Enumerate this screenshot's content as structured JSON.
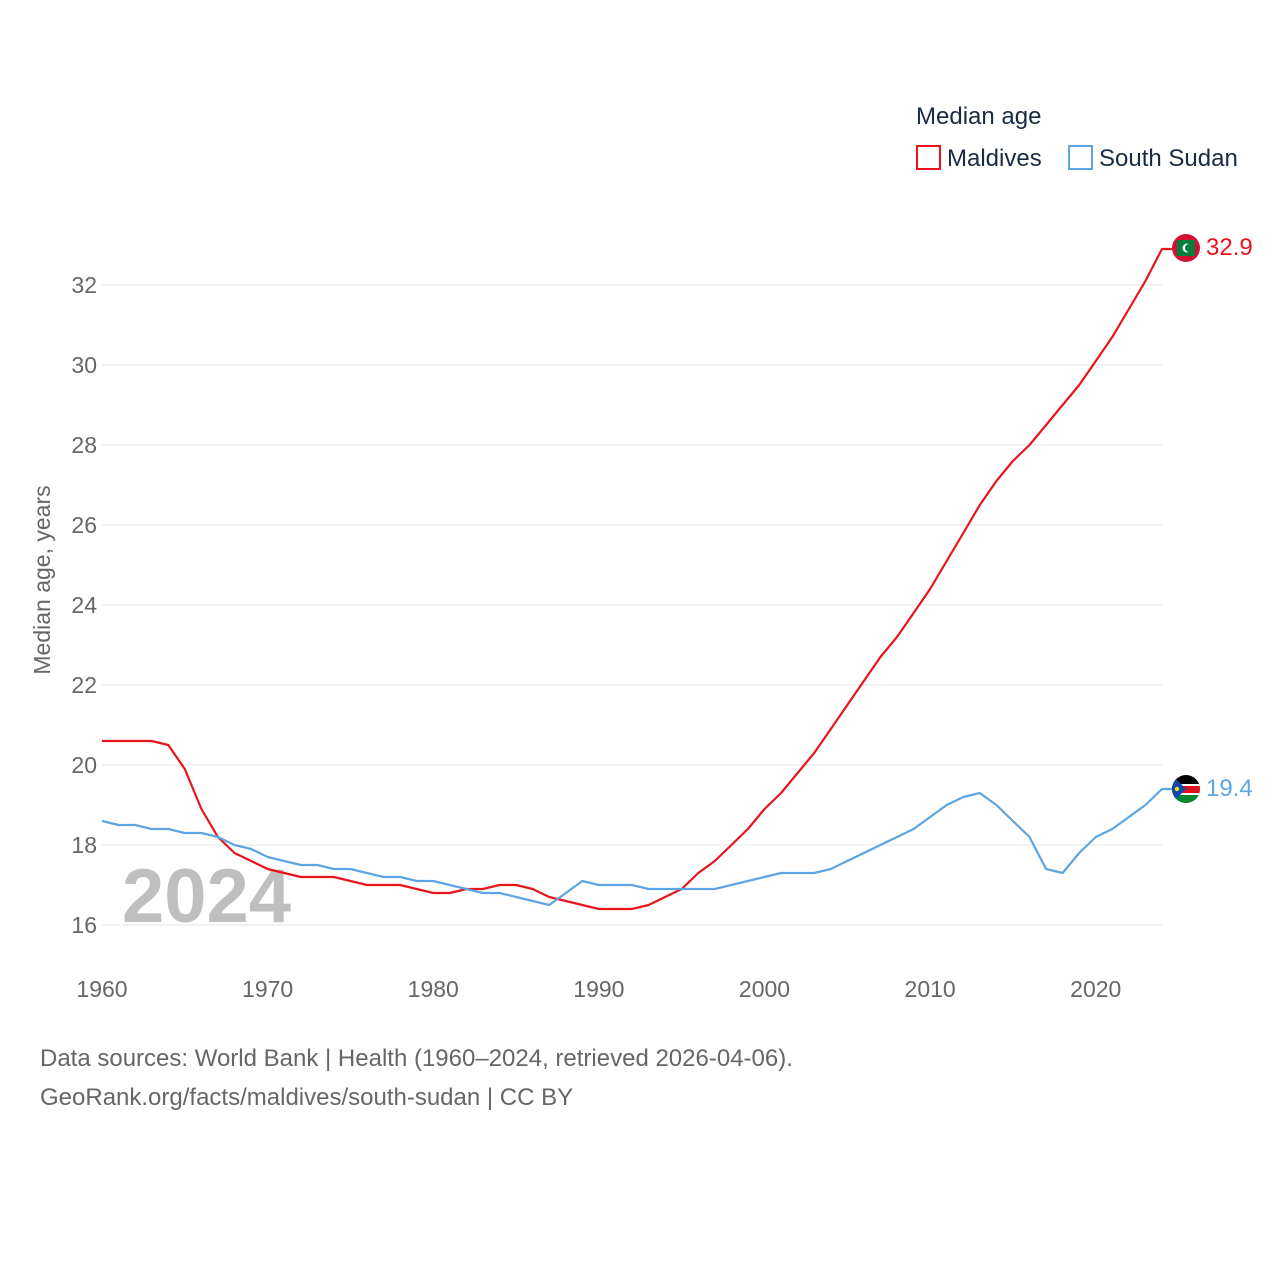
{
  "chart_data": {
    "type": "line",
    "title": "Median age",
    "xlabel": "",
    "ylabel": "Median age, years",
    "xlim": [
      1960,
      2024
    ],
    "ylim": [
      15,
      33.5
    ],
    "x_ticks": [
      1960,
      1970,
      1980,
      1990,
      2000,
      2010,
      2020
    ],
    "y_ticks": [
      16,
      18,
      20,
      22,
      24,
      26,
      28,
      30,
      32
    ],
    "grid": true,
    "legend_position": "top-right",
    "year_label": "2024",
    "x": [
      1960,
      1961,
      1962,
      1963,
      1964,
      1965,
      1966,
      1967,
      1968,
      1969,
      1970,
      1971,
      1972,
      1973,
      1974,
      1975,
      1976,
      1977,
      1978,
      1979,
      1980,
      1981,
      1982,
      1983,
      1984,
      1985,
      1986,
      1987,
      1988,
      1989,
      1990,
      1991,
      1992,
      1993,
      1994,
      1995,
      1996,
      1997,
      1998,
      1999,
      2000,
      2001,
      2002,
      2003,
      2004,
      2005,
      2006,
      2007,
      2008,
      2009,
      2010,
      2011,
      2012,
      2013,
      2014,
      2015,
      2016,
      2017,
      2018,
      2019,
      2020,
      2021,
      2022,
      2023,
      2024
    ],
    "series": [
      {
        "name": "Maldives",
        "color": "#e8141c",
        "end_label": "32.9",
        "values": [
          20.6,
          20.6,
          20.6,
          20.6,
          20.5,
          19.9,
          18.9,
          18.2,
          17.8,
          17.6,
          17.4,
          17.3,
          17.2,
          17.2,
          17.2,
          17.1,
          17.0,
          17.0,
          17.0,
          16.9,
          16.8,
          16.8,
          16.9,
          16.9,
          17.0,
          17.0,
          16.9,
          16.7,
          16.6,
          16.5,
          16.4,
          16.4,
          16.4,
          16.5,
          16.7,
          16.9,
          17.3,
          17.6,
          18.0,
          18.4,
          18.9,
          19.3,
          19.8,
          20.3,
          20.9,
          21.5,
          22.1,
          22.7,
          23.2,
          23.8,
          24.4,
          25.1,
          25.8,
          26.5,
          27.1,
          27.6,
          28.0,
          28.5,
          29.0,
          29.5,
          30.1,
          30.7,
          31.4,
          32.1,
          32.9
        ]
      },
      {
        "name": "South Sudan",
        "color": "#5da4e3",
        "end_label": "19.4",
        "values": [
          18.6,
          18.5,
          18.5,
          18.4,
          18.4,
          18.3,
          18.3,
          18.2,
          18.0,
          17.9,
          17.7,
          17.6,
          17.5,
          17.5,
          17.4,
          17.4,
          17.3,
          17.2,
          17.2,
          17.1,
          17.1,
          17.0,
          16.9,
          16.8,
          16.8,
          16.7,
          16.6,
          16.5,
          16.8,
          17.1,
          17.0,
          17.0,
          17.0,
          16.9,
          16.9,
          16.9,
          16.9,
          16.9,
          17.0,
          17.1,
          17.2,
          17.3,
          17.3,
          17.3,
          17.4,
          17.6,
          17.8,
          18.0,
          18.2,
          18.4,
          18.7,
          19.0,
          19.2,
          19.3,
          19.0,
          18.6,
          18.2,
          17.4,
          17.3,
          17.8,
          18.2,
          18.4,
          18.7,
          19.0,
          19.4
        ]
      }
    ]
  },
  "footer": {
    "line1": "Data sources: World Bank | Health (1960–2024, retrieved 2026-04-06).",
    "line2": "GeoRank.org/facts/maldives/south-sudan | CC BY"
  }
}
